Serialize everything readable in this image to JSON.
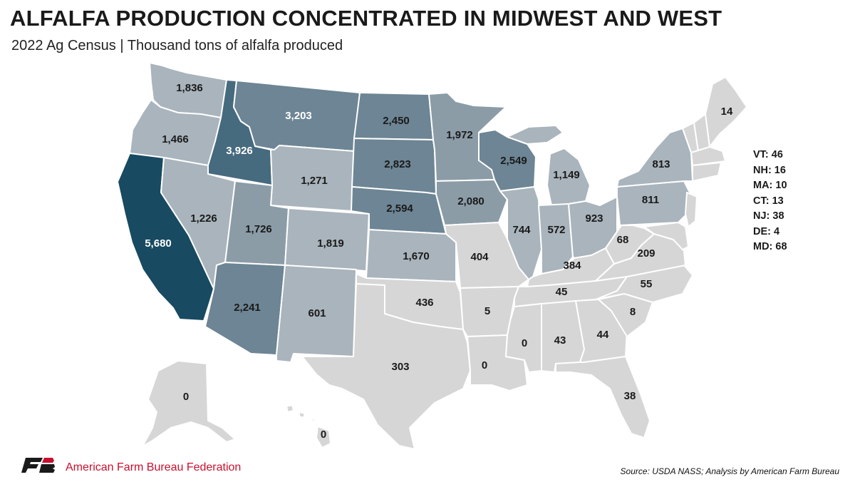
{
  "header": {
    "title": "ALFALFA PRODUCTION CONCENTRATED IN MIDWEST AND WEST",
    "subtitle": "2022 Ag Census | Thousand tons of alfalfa produced"
  },
  "legend_colors": {
    "lowest": "#d6d6d6",
    "low": "#a9b4bc",
    "mid": "#8b9ca7",
    "high": "#6d8594",
    "higher": "#466a7e",
    "highest": "#184a61"
  },
  "states": {
    "WA": "1,836",
    "OR": "1,466",
    "CA": "5,680",
    "ID": "3,926",
    "NV": "1,226",
    "MT": "3,203",
    "WY": "1,271",
    "UT": "1,726",
    "AZ": "2,241",
    "CO": "1,819",
    "NM": "601",
    "ND": "2,450",
    "SD": "2,823",
    "NE": "2,594",
    "KS": "1,670",
    "OK": "436",
    "TX": "303",
    "MN": "1,972",
    "IA": "2,080",
    "MO": "404",
    "AR": "5",
    "LA": "0",
    "WI": "2,549",
    "IL": "744",
    "MI": "1,149",
    "IN": "572",
    "OH": "923",
    "KY": "384",
    "TN": "45",
    "MS": "0",
    "AL": "43",
    "GA": "44",
    "FL": "38",
    "SC": "8",
    "NC": "55",
    "VA": "209",
    "WV": "68",
    "PA": "811",
    "NY": "813",
    "ME": "14",
    "AK": "0",
    "HI": "0"
  },
  "small_states": [
    "VT: 46",
    "NH: 16",
    "MA: 10",
    "CT: 13",
    "NJ: 38",
    "DE: 4",
    "MD: 68"
  ],
  "footer": {
    "organization": "American Farm Bureau Federation",
    "source": "Source: USDA NASS; Analysis by American Farm Bureau"
  }
}
